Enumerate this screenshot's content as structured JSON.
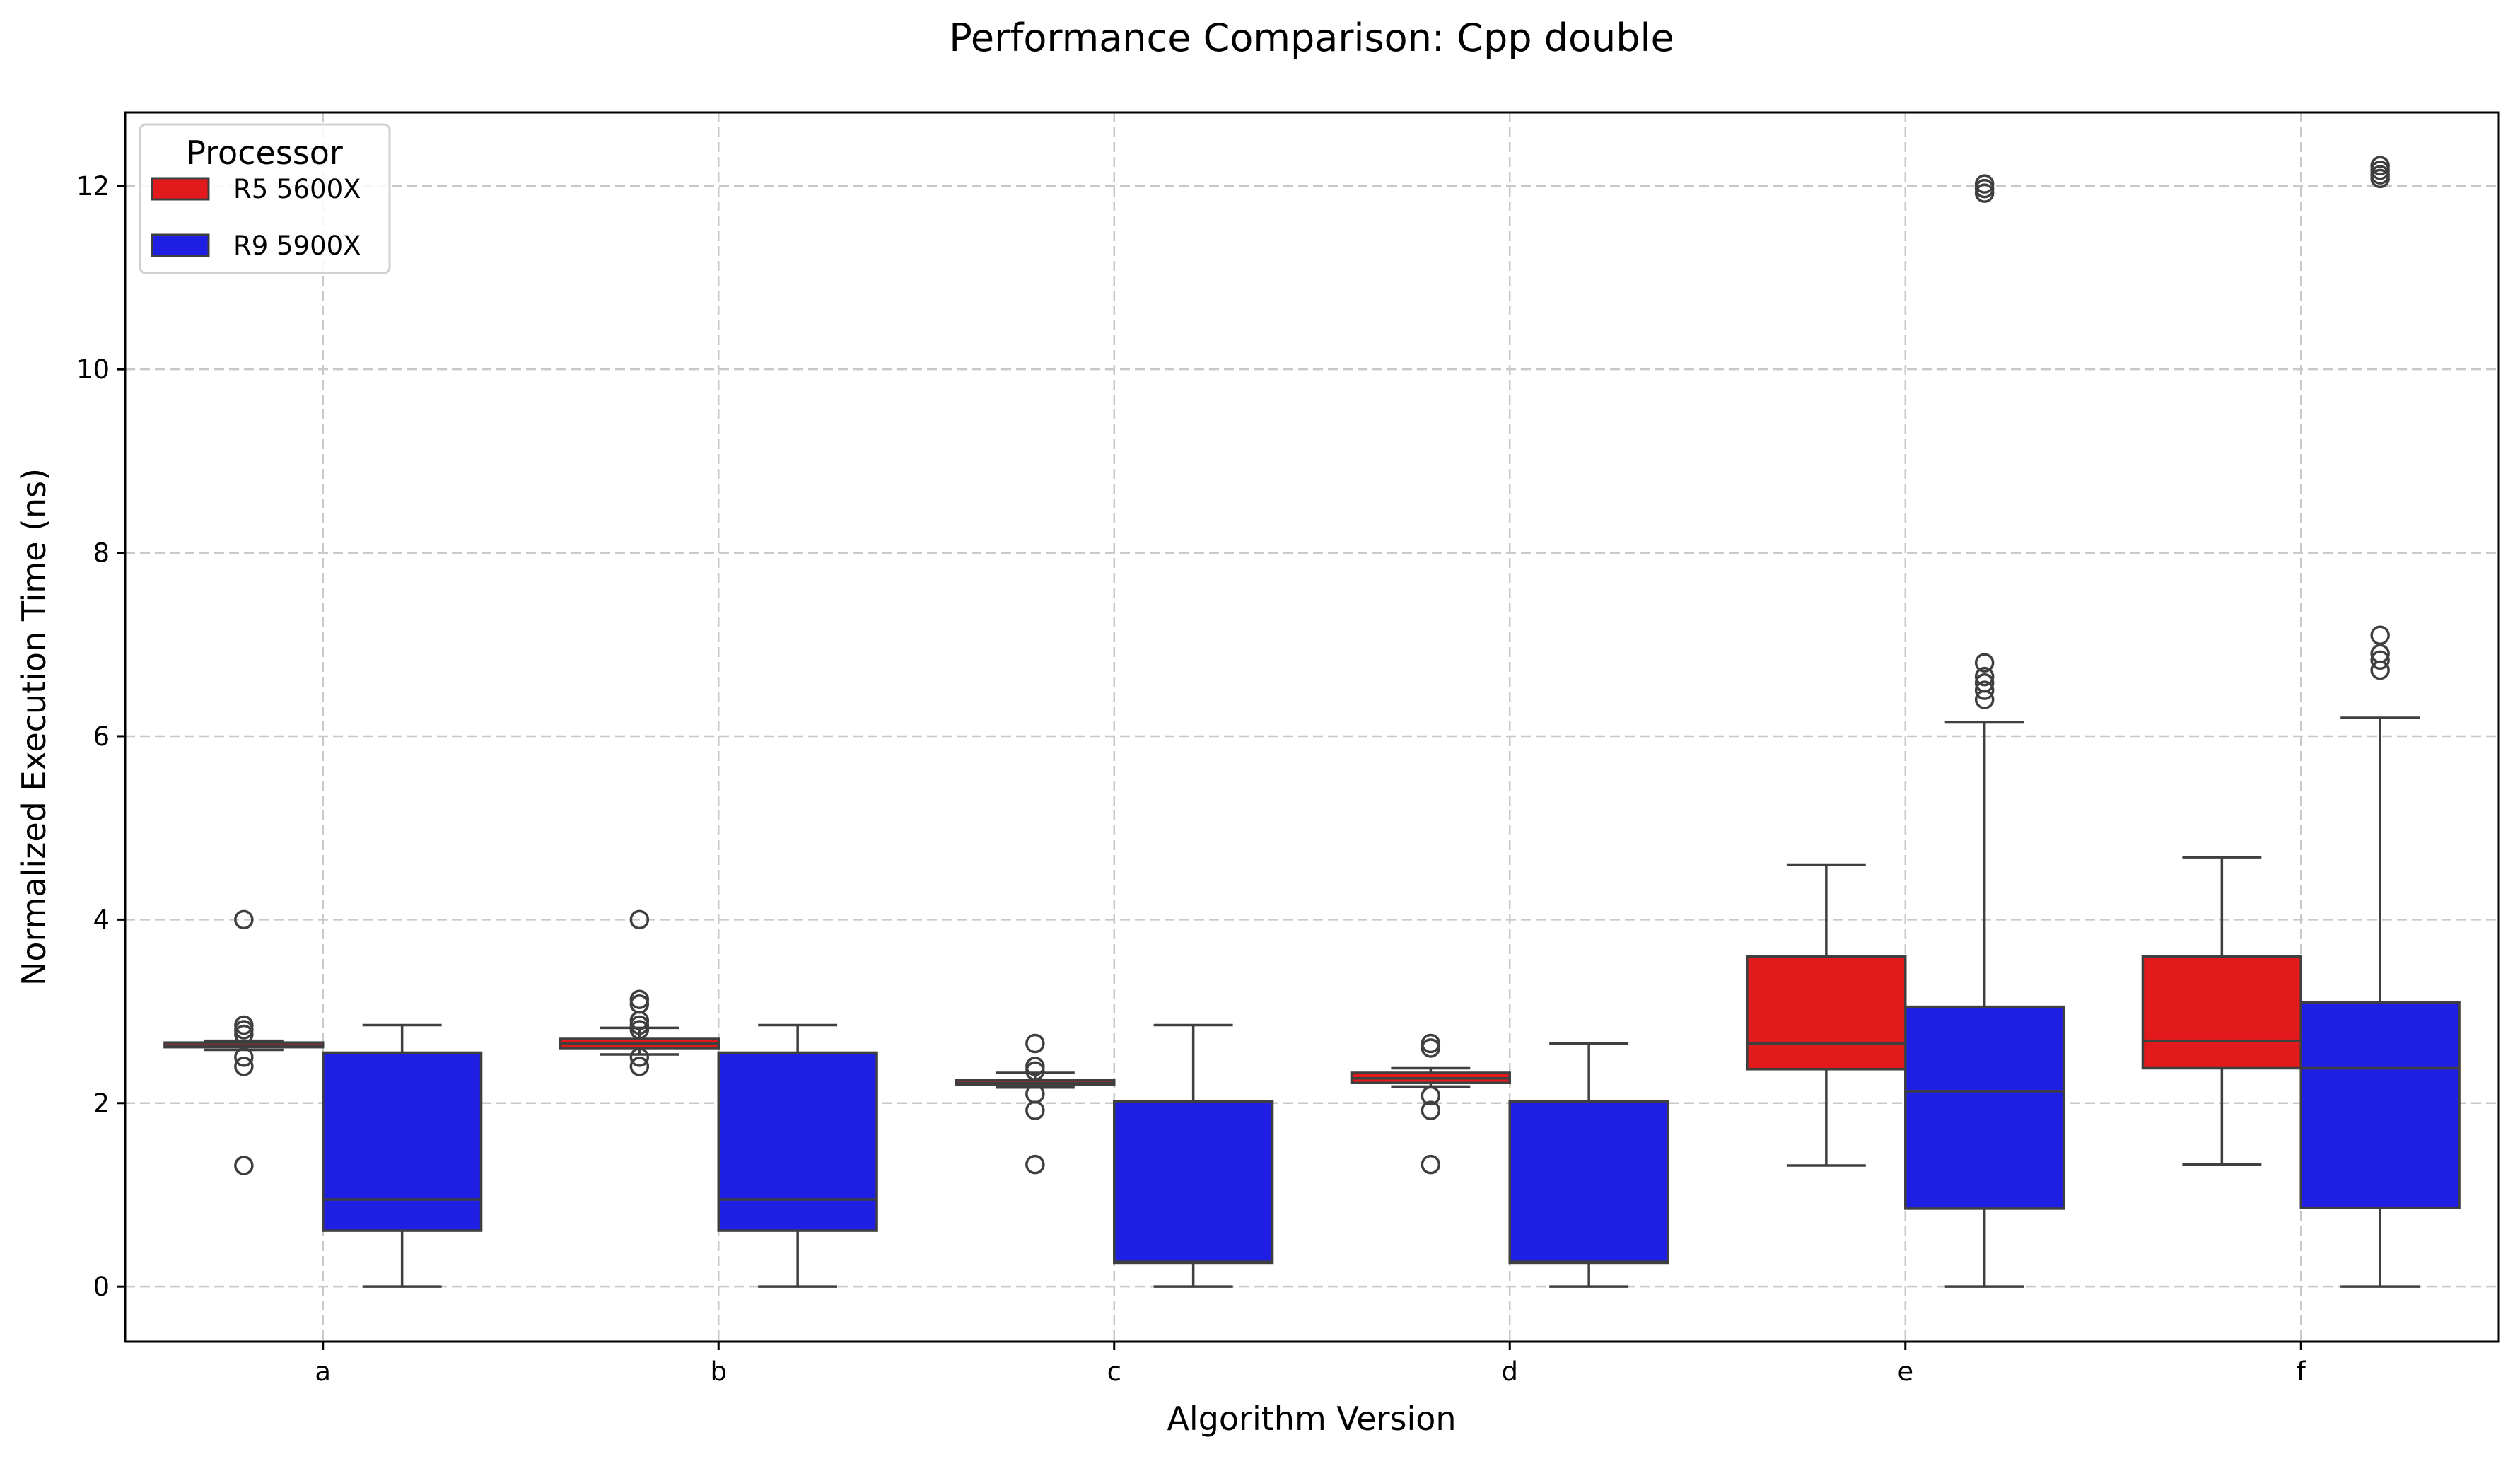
{
  "chart_data": {
    "type": "box",
    "title": "Performance Comparison: Cpp double",
    "xlabel": "Algorithm Version",
    "ylabel": "Normalized Execution Time (ns)",
    "categories": [
      "a",
      "b",
      "c",
      "d",
      "e",
      "f"
    ],
    "ylim": [
      -0.6,
      12.8
    ],
    "yticks": [
      0,
      2,
      4,
      6,
      8,
      10,
      12
    ],
    "grid": true,
    "legend": {
      "title": "Processor",
      "placement": "top-left"
    },
    "series": [
      {
        "name": "R5 5600X",
        "color": "#e31a1c",
        "stats": [
          {
            "whislo": 2.58,
            "q1": 2.61,
            "median": 2.63,
            "q3": 2.66,
            "whishi": 2.68,
            "fliers": [
              4.0,
              2.85,
              2.8,
              2.75,
              2.5,
              2.4,
              1.32
            ]
          },
          {
            "whislo": 2.53,
            "q1": 2.6,
            "median": 2.65,
            "q3": 2.7,
            "whishi": 2.82,
            "fliers": [
              4.0,
              3.13,
              3.08,
              2.9,
              2.85,
              2.8,
              2.5,
              2.4
            ]
          },
          {
            "whislo": 2.17,
            "q1": 2.2,
            "median": 2.22,
            "q3": 2.25,
            "whishi": 2.33,
            "fliers": [
              2.65,
              2.4,
              2.35,
              2.1,
              1.92,
              1.33
            ]
          },
          {
            "whislo": 2.18,
            "q1": 2.22,
            "median": 2.27,
            "q3": 2.33,
            "whishi": 2.38,
            "fliers": [
              2.65,
              2.6,
              2.08,
              1.92,
              1.33
            ]
          },
          {
            "whislo": 1.32,
            "q1": 2.37,
            "median": 2.65,
            "q3": 3.6,
            "whishi": 4.6,
            "fliers": []
          },
          {
            "whislo": 1.33,
            "q1": 2.38,
            "median": 2.68,
            "q3": 3.6,
            "whishi": 4.68,
            "fliers": []
          }
        ]
      },
      {
        "name": "R9 5900X",
        "color": "#1f1fe3",
        "stats": [
          {
            "whislo": 0.0,
            "q1": 0.61,
            "median": 0.95,
            "q3": 2.55,
            "whishi": 2.85,
            "fliers": []
          },
          {
            "whislo": 0.0,
            "q1": 0.61,
            "median": 0.95,
            "q3": 2.55,
            "whishi": 2.85,
            "fliers": []
          },
          {
            "whislo": 0.0,
            "q1": 0.26,
            "median": 0.27,
            "q3": 2.02,
            "whishi": 2.85,
            "fliers": []
          },
          {
            "whislo": 0.0,
            "q1": 0.26,
            "median": 0.27,
            "q3": 2.02,
            "whishi": 2.65,
            "fliers": []
          },
          {
            "whislo": 0.0,
            "q1": 0.85,
            "median": 2.13,
            "q3": 3.05,
            "whishi": 6.15,
            "fliers": [
              12.02,
              11.97,
              11.92,
              6.8,
              6.65,
              6.58,
              6.5,
              6.4
            ]
          },
          {
            "whislo": 0.0,
            "q1": 0.86,
            "median": 2.38,
            "q3": 3.1,
            "whishi": 6.2,
            "fliers": [
              12.22,
              12.17,
              12.12,
              12.08,
              7.1,
              6.9,
              6.83,
              6.72
            ]
          }
        ]
      }
    ]
  }
}
